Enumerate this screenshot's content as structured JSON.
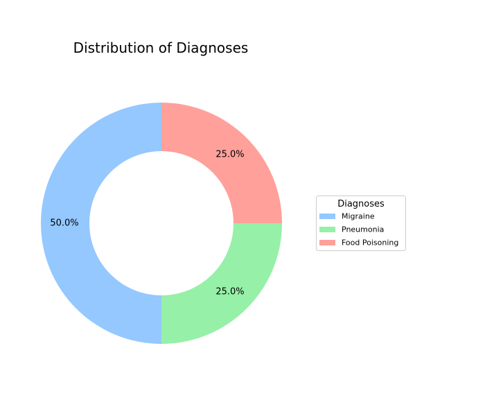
{
  "chart_data": {
    "type": "pie",
    "variant": "donut",
    "title": "Distribution of Diagnoses",
    "categories": [
      "Migraine",
      "Pneumonia",
      "Food Poisoning"
    ],
    "values": [
      50.0,
      25.0,
      25.0
    ],
    "percent_labels": [
      "50.0%",
      "25.0%",
      "25.0%"
    ],
    "colors": [
      "#94c8ff",
      "#96f0a8",
      "#ffa09a"
    ],
    "start_angle_deg": 90,
    "direction": "counterclockwise",
    "legend": {
      "title": "Diagnoses",
      "placement": "center-right",
      "entries": [
        "Migraine",
        "Pneumonia",
        "Food Poisoning"
      ]
    }
  }
}
